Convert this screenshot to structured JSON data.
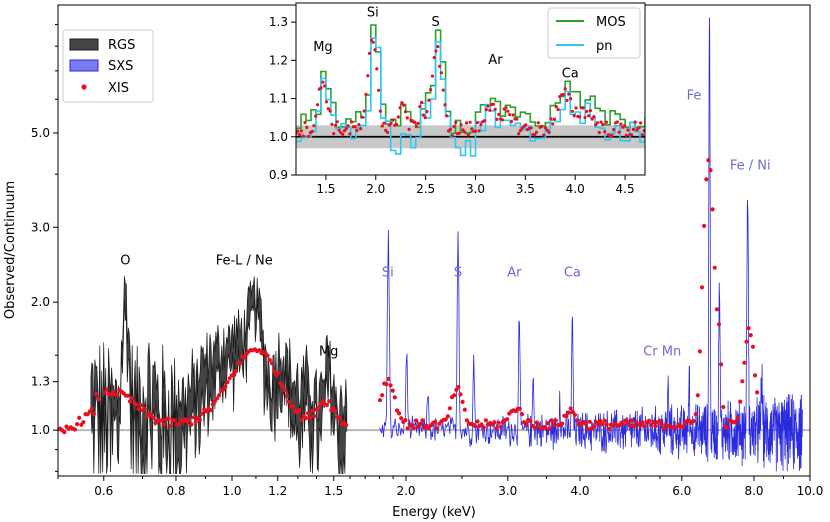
{
  "colors": {
    "rgs": "#1a1a1a",
    "rgs_band": "#444444",
    "sxs": "#2a2ae0",
    "sxs_legend": "#7b7bf0",
    "sxs_label": "#6c6cd6",
    "xis": "#e8101e",
    "mos": "#2ca02c",
    "pn": "#2ec7f2",
    "unity_line": "#b8b8b8",
    "band": "#c8c8c8"
  },
  "chart_data": [
    {
      "type": "line",
      "id": "main",
      "title": "",
      "xlabel": "Energy (keV)",
      "ylabel": "Observed/Continuum",
      "xscale": "log",
      "yscale": "log",
      "xlim": [
        0.5,
        10.0
      ],
      "ylim": [
        0.78,
        10.0
      ],
      "x_ticks": [
        {
          "v": 0.6,
          "t": "0.6"
        },
        {
          "v": 0.8,
          "t": "0.8"
        },
        {
          "v": 1.0,
          "t": "1.0"
        },
        {
          "v": 1.2,
          "t": "1.2"
        },
        {
          "v": 1.5,
          "t": "1.5"
        },
        {
          "v": 2.0,
          "t": "2.0"
        },
        {
          "v": 3.0,
          "t": "3.0"
        },
        {
          "v": 4.0,
          "t": "4.0"
        },
        {
          "v": 6.0,
          "t": "6.0"
        },
        {
          "v": 8.0,
          "t": "8.0"
        },
        {
          "v": 10.0,
          "t": "10.0"
        }
      ],
      "y_ticks": [
        {
          "v": 1.0,
          "t": "1.0"
        },
        {
          "v": 1.3,
          "t": "1.3"
        },
        {
          "v": 2.0,
          "t": "2.0"
        },
        {
          "v": 3.0,
          "t": "3.0"
        },
        {
          "v": 5.0,
          "t": "5.0"
        }
      ],
      "legend": {
        "position": "top-left",
        "entries": [
          {
            "name": "RGS",
            "style": "band"
          },
          {
            "name": "SXS",
            "style": "band"
          },
          {
            "name": "XIS",
            "style": "points"
          }
        ]
      },
      "reference_line": 1.0,
      "annotations": [
        {
          "text": "O",
          "x": 0.654,
          "y": 2.45,
          "color": "black"
        },
        {
          "text": "Fe-L / Ne",
          "x": 1.05,
          "y": 2.45,
          "color": "black"
        },
        {
          "text": "Mg",
          "x": 1.47,
          "y": 1.5,
          "color": "black"
        },
        {
          "text": "Si",
          "x": 1.86,
          "y": 2.3,
          "color": "sxs"
        },
        {
          "text": "S",
          "x": 2.46,
          "y": 2.3,
          "color": "sxs"
        },
        {
          "text": "Ar",
          "x": 3.08,
          "y": 2.3,
          "color": "sxs"
        },
        {
          "text": "Ca",
          "x": 3.88,
          "y": 2.3,
          "color": "sxs"
        },
        {
          "text": "Cr Mn",
          "x": 5.55,
          "y": 1.5,
          "color": "sxs"
        },
        {
          "text": "Fe",
          "x": 6.3,
          "y": 6.0,
          "color": "sxs"
        },
        {
          "text": "Fe / Ni",
          "x": 7.88,
          "y": 4.1,
          "color": "sxs"
        }
      ],
      "rgs_range": [
        0.57,
        1.58
      ],
      "rgs_features": [
        {
          "center": 0.654,
          "amp": 0.95,
          "width": 0.008
        },
        {
          "center": 0.57,
          "amp": 0.08,
          "width": 0.03
        },
        {
          "center": 0.72,
          "amp": 0.12,
          "width": 0.02
        },
        {
          "center": 0.92,
          "amp": 0.28,
          "width": 0.05
        },
        {
          "center": 1.02,
          "amp": 0.45,
          "width": 0.05
        },
        {
          "center": 1.1,
          "amp": 0.82,
          "width": 0.03
        },
        {
          "center": 1.22,
          "amp": 0.38,
          "width": 0.04
        },
        {
          "center": 1.35,
          "amp": 0.15,
          "width": 0.03
        },
        {
          "center": 1.47,
          "amp": 0.35,
          "width": 0.02
        }
      ],
      "sxs_range": [
        1.8,
        9.7
      ],
      "sxs_lines": [
        {
          "center": 1.864,
          "amp": 1.95,
          "width": 0.006
        },
        {
          "center": 2.006,
          "amp": 0.55,
          "width": 0.006
        },
        {
          "center": 2.183,
          "amp": 0.25,
          "width": 0.006
        },
        {
          "center": 2.461,
          "amp": 2.0,
          "width": 0.007
        },
        {
          "center": 2.62,
          "amp": 0.5,
          "width": 0.007
        },
        {
          "center": 3.14,
          "amp": 0.85,
          "width": 0.008
        },
        {
          "center": 3.32,
          "amp": 0.35,
          "width": 0.008
        },
        {
          "center": 3.69,
          "amp": 0.25,
          "width": 0.008
        },
        {
          "center": 3.88,
          "amp": 0.9,
          "width": 0.009
        },
        {
          "center": 5.68,
          "amp": 0.3,
          "width": 0.01
        },
        {
          "center": 6.18,
          "amp": 0.4,
          "width": 0.01
        },
        {
          "center": 6.7,
          "amp": 8.5,
          "width": 0.012
        },
        {
          "center": 6.97,
          "amp": 1.2,
          "width": 0.015
        },
        {
          "center": 7.8,
          "amp": 2.5,
          "width": 0.02
        },
        {
          "center": 8.25,
          "amp": 0.35,
          "width": 0.02
        }
      ],
      "xis_features": [
        {
          "center": 0.62,
          "amp": 0.2,
          "width": 0.06
        },
        {
          "center": 1.1,
          "amp": 0.52,
          "width": 0.1
        },
        {
          "center": 1.45,
          "amp": 0.14,
          "width": 0.05
        },
        {
          "center": 1.86,
          "amp": 0.28,
          "width": 0.05
        },
        {
          "center": 2.45,
          "amp": 0.22,
          "width": 0.05
        },
        {
          "center": 3.1,
          "amp": 0.1,
          "width": 0.07
        },
        {
          "center": 3.85,
          "amp": 0.08,
          "width": 0.08
        },
        {
          "center": 6.68,
          "amp": 3.3,
          "width": 0.12
        },
        {
          "center": 6.96,
          "amp": 0.5,
          "width": 0.06
        },
        {
          "center": 7.85,
          "amp": 0.7,
          "width": 0.15
        }
      ],
      "xis_range": [
        0.5,
        8.1
      ]
    },
    {
      "type": "line",
      "id": "inset",
      "xlim": [
        1.2,
        4.7
      ],
      "ylim": [
        0.9,
        1.35
      ],
      "x_ticks": [
        {
          "v": 1.5,
          "t": "1.5"
        },
        {
          "v": 2.0,
          "t": "2.0"
        },
        {
          "v": 2.5,
          "t": "2.5"
        },
        {
          "v": 3.0,
          "t": "3.0"
        },
        {
          "v": 3.5,
          "t": "3.5"
        },
        {
          "v": 4.0,
          "t": "4.0"
        },
        {
          "v": 4.5,
          "t": "4.5"
        }
      ],
      "y_ticks": [
        {
          "v": 0.9,
          "t": "0.9"
        },
        {
          "v": 1.0,
          "t": "1.0"
        },
        {
          "v": 1.1,
          "t": "1.1"
        },
        {
          "v": 1.2,
          "t": "1.2"
        },
        {
          "v": 1.3,
          "t": "1.3"
        }
      ],
      "band": [
        0.97,
        1.03
      ],
      "reference_line": 1.0,
      "legend": {
        "position": "top-right",
        "entries": [
          {
            "name": "MOS",
            "style": "line"
          },
          {
            "name": "pn",
            "style": "line"
          }
        ]
      },
      "annotations": [
        {
          "text": "Mg",
          "x": 1.47,
          "y": 1.225
        },
        {
          "text": "Si",
          "x": 1.97,
          "y": 1.315
        },
        {
          "text": "S",
          "x": 2.6,
          "y": 1.29
        },
        {
          "text": "Ar",
          "x": 3.2,
          "y": 1.19
        },
        {
          "text": "Ca",
          "x": 3.95,
          "y": 1.155
        }
      ],
      "features": [
        {
          "center": 1.47,
          "amp": 0.13,
          "width": 0.045
        },
        {
          "center": 1.97,
          "amp": 0.25,
          "width": 0.045
        },
        {
          "center": 2.26,
          "amp": 0.07,
          "width": 0.04
        },
        {
          "center": 2.46,
          "amp": 0.05,
          "width": 0.04
        },
        {
          "center": 2.61,
          "amp": 0.22,
          "width": 0.05
        },
        {
          "center": 3.14,
          "amp": 0.07,
          "width": 0.05
        },
        {
          "center": 3.33,
          "amp": 0.05,
          "width": 0.05
        },
        {
          "center": 3.89,
          "amp": 0.09,
          "width": 0.07
        },
        {
          "center": 4.1,
          "amp": 0.05,
          "width": 0.08
        }
      ]
    }
  ]
}
